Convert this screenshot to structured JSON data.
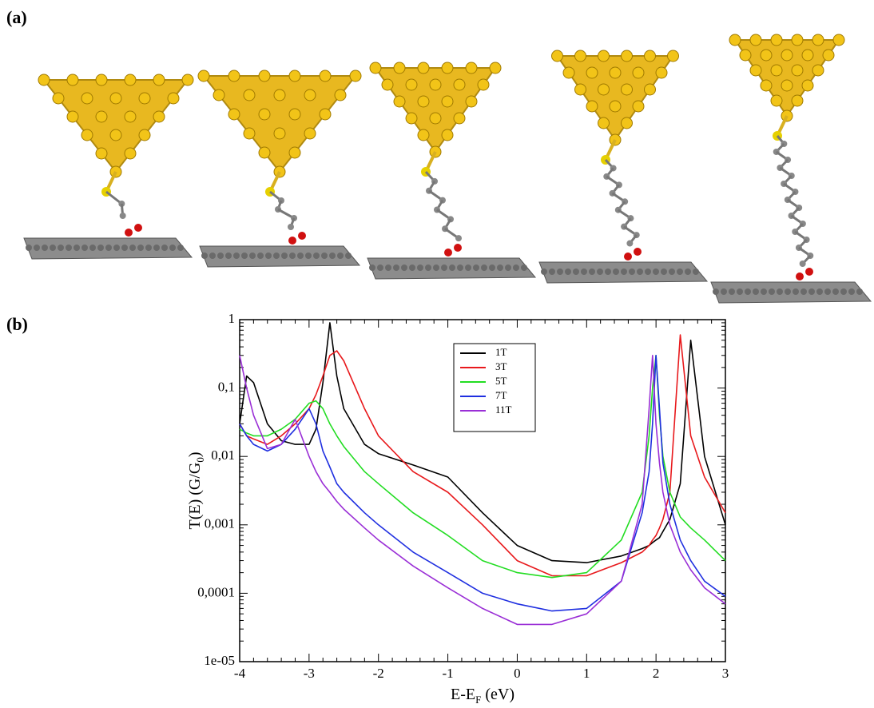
{
  "panel_labels": [
    "(a)",
    "(b)"
  ],
  "chart_data": {
    "type": "line",
    "x_label": [
      "E-E",
      "F",
      " (eV)"
    ],
    "y_label": [
      "T(E) (G/G",
      "0",
      ")"
    ],
    "log_y": true,
    "xlim": [
      -4,
      3
    ],
    "xticks": [
      -4,
      -3,
      -2,
      -1,
      0,
      1,
      2,
      3
    ],
    "ylim": [
      1e-05,
      1
    ],
    "yticks": [
      {
        "value": 1e-05,
        "label": "1e-05"
      },
      {
        "value": 0.0001,
        "label": "0,0001"
      },
      {
        "value": 0.001,
        "label": "0,001"
      },
      {
        "value": 0.01,
        "label": "0,01"
      },
      {
        "value": 0.1,
        "label": "0,1"
      },
      1
    ],
    "x": [
      -4,
      -3.9,
      -3.8,
      -3.6,
      -3.4,
      -3.2,
      -3.0,
      -2.9,
      -2.8,
      -2.7,
      -2.6,
      -2.5,
      -2.2,
      -2.0,
      -1.5,
      -1.0,
      -0.5,
      0,
      0.5,
      1.0,
      1.5,
      1.8,
      1.9,
      1.95,
      2.0,
      2.05,
      2.1,
      2.2,
      2.35,
      2.5,
      2.7,
      3.0
    ],
    "series": [
      {
        "name": "1T",
        "color": "#000000",
        "values": [
          0.03,
          0.15,
          0.12,
          0.03,
          0.017,
          0.015,
          0.015,
          0.025,
          0.12,
          0.9,
          0.15,
          0.05,
          0.015,
          0.011,
          0.0075,
          0.005,
          0.0015,
          0.0005,
          0.0003,
          0.00028,
          0.00035,
          0.00045,
          0.0005,
          0.00055,
          0.0006,
          0.00065,
          0.0008,
          0.0012,
          0.004,
          0.5,
          0.01,
          0.001
        ]
      },
      {
        "name": "3T",
        "color": "#e8191c",
        "values": [
          0.03,
          0.02,
          0.018,
          0.015,
          0.02,
          0.03,
          0.05,
          0.08,
          0.15,
          0.3,
          0.35,
          0.25,
          0.05,
          0.02,
          0.006,
          0.003,
          0.001,
          0.0003,
          0.00018,
          0.00018,
          0.00028,
          0.0004,
          0.0005,
          0.0006,
          0.0007,
          0.0009,
          0.0012,
          0.003,
          0.6,
          0.02,
          0.005,
          0.0015
        ]
      },
      {
        "name": "5T",
        "color": "#22dd22",
        "values": [
          0.025,
          0.022,
          0.02,
          0.02,
          0.025,
          0.035,
          0.06,
          0.065,
          0.05,
          0.03,
          0.02,
          0.014,
          0.006,
          0.004,
          0.0015,
          0.0007,
          0.0003,
          0.0002,
          0.00017,
          0.0002,
          0.0006,
          0.003,
          0.02,
          0.1,
          0.3,
          0.04,
          0.01,
          0.003,
          0.0013,
          0.0009,
          0.0006,
          0.0003
        ]
      },
      {
        "name": "7T",
        "color": "#1f2fe0",
        "values": [
          0.03,
          0.02,
          0.015,
          0.012,
          0.015,
          0.025,
          0.05,
          0.03,
          0.012,
          0.007,
          0.004,
          0.003,
          0.0015,
          0.001,
          0.0004,
          0.0002,
          0.0001,
          7e-05,
          5.5e-05,
          6e-05,
          0.00015,
          0.0015,
          0.006,
          0.03,
          0.3,
          0.05,
          0.008,
          0.002,
          0.0006,
          0.0003,
          0.00015,
          9e-05
        ]
      },
      {
        "name": "11T",
        "color": "#9a2fd6",
        "values": [
          0.3,
          0.1,
          0.04,
          0.013,
          0.015,
          0.035,
          0.01,
          0.006,
          0.004,
          0.003,
          0.0022,
          0.0017,
          0.0009,
          0.0006,
          0.00025,
          0.00012,
          6e-05,
          3.5e-05,
          3.5e-05,
          5e-05,
          0.00015,
          0.002,
          0.05,
          0.3,
          0.03,
          0.008,
          0.003,
          0.001,
          0.0004,
          0.00022,
          0.00012,
          7e-05
        ]
      }
    ]
  }
}
